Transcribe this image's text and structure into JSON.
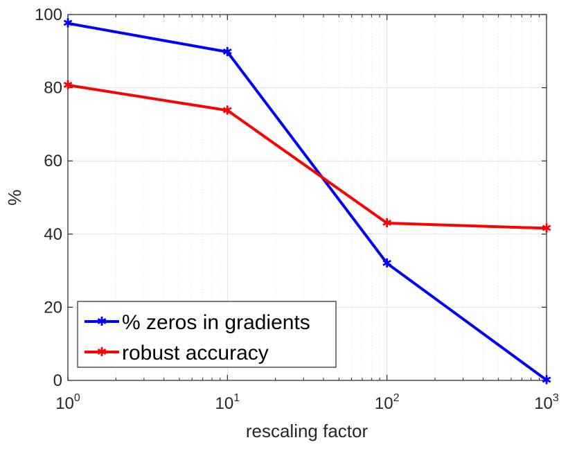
{
  "chart_data": {
    "type": "line",
    "xscale": "log",
    "x": [
      1,
      10,
      100,
      1000
    ],
    "xlim": [
      1,
      1000
    ],
    "ylim": [
      0,
      100
    ],
    "xlabel": "rescaling factor",
    "ylabel": "%",
    "grid": true,
    "legend_position": "bottom-left",
    "x_tick_base": "10",
    "x_tick_exponents": [
      "0",
      "1",
      "2",
      "3"
    ],
    "y_ticks": [
      "0",
      "20",
      "40",
      "60",
      "80",
      "100"
    ],
    "series": [
      {
        "name": "% zeros in gradients",
        "color": "#0000ff",
        "values": [
          97.6,
          89.8,
          32.0,
          0.1
        ]
      },
      {
        "name": "robust accuracy",
        "color": "#ff0000",
        "values": [
          80.7,
          73.8,
          43.0,
          41.6
        ]
      }
    ]
  }
}
